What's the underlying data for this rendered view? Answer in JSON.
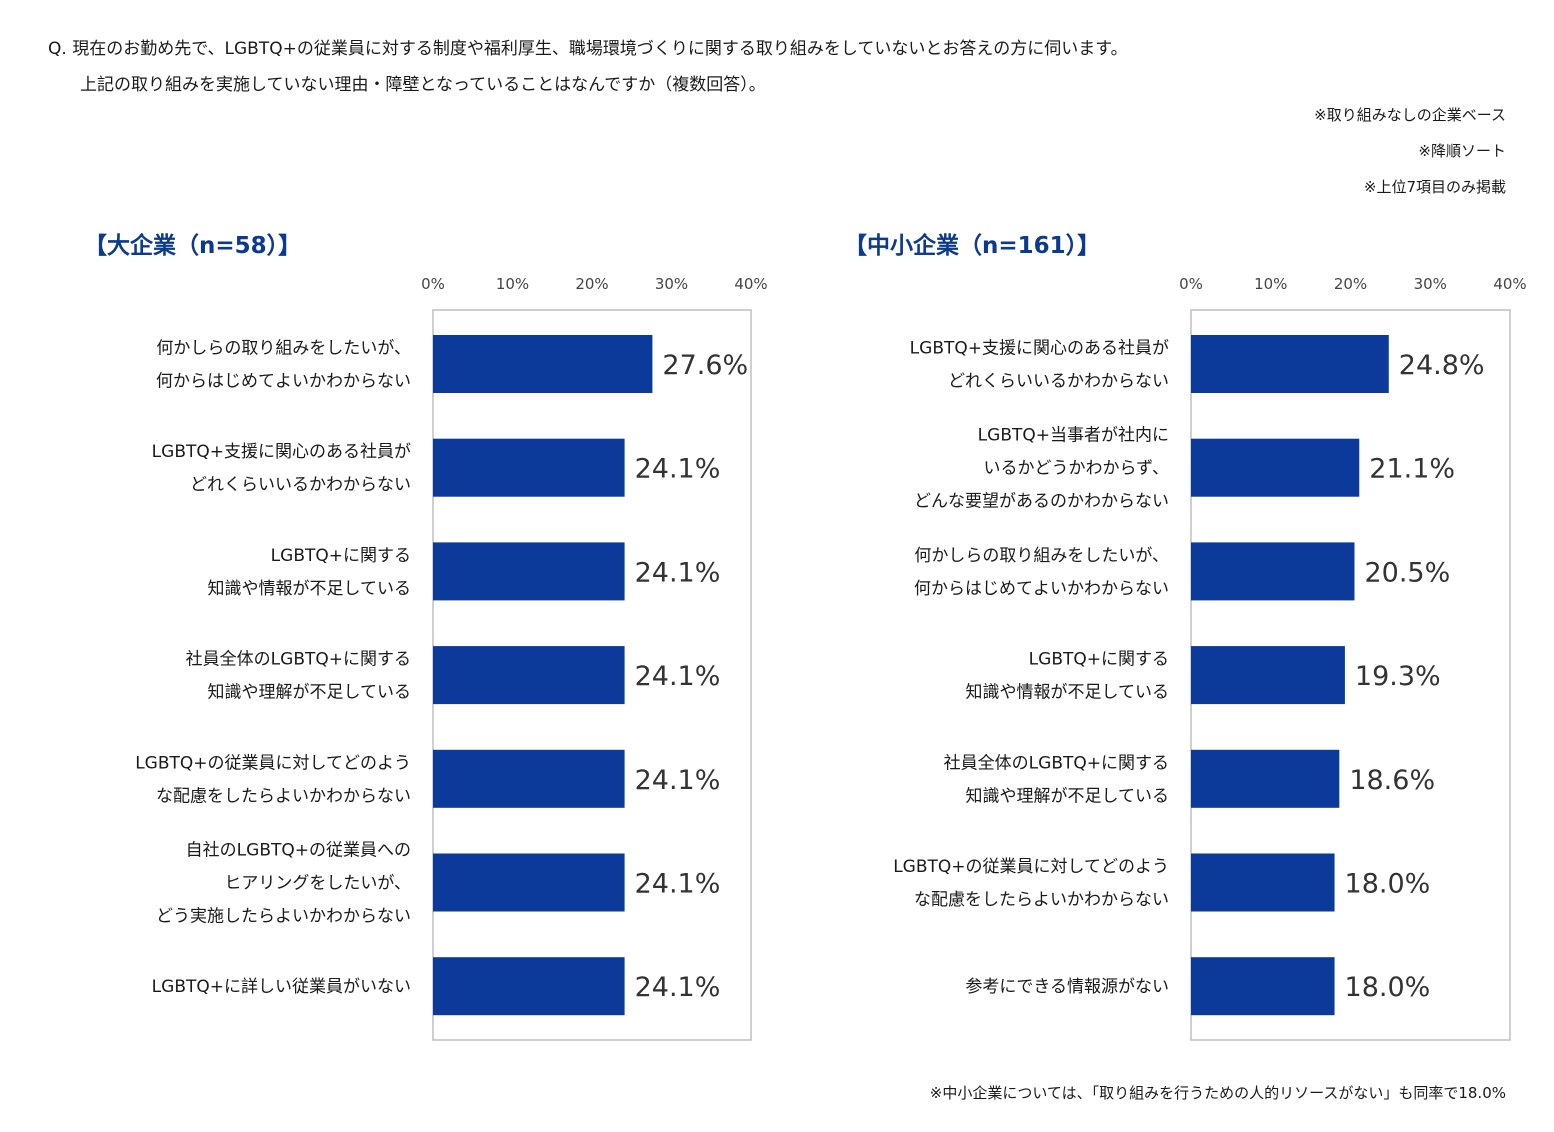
{
  "header": {
    "question_line1": "Q. 現在のお勤め先で、LGBTQ+の従業員に対する制度や福利厚生、職場環境づくりに関する取り組みをしていないとお答えの方に伺います。",
    "question_line2": "上記の取り組みを実施していない理由・障壁となっていることはなんですか（複数回答）。",
    "notes": [
      "※取り組みなしの企業ベース",
      "※降順ソート",
      "※上位7項目のみ掲載"
    ]
  },
  "footer": {
    "note": "※中小企業については、「取り組みを行うための人的リソースがない」も同率で18.0%"
  },
  "colors": {
    "bar": "#0b3a9b",
    "frame": "#bfbfbf",
    "title": "#0b3a8f"
  },
  "chart_data": [
    {
      "type": "bar",
      "orientation": "horizontal",
      "title": "【大企業（n=58）】",
      "xlim": [
        0,
        40
      ],
      "ticks": [
        "0%",
        "10%",
        "20%",
        "30%",
        "40%"
      ],
      "categories": [
        [
          "何かしらの取り組みをしたいが、",
          "何からはじめてよいかわからない"
        ],
        [
          "LGBTQ+支援に関心のある社員が",
          "どれくらいいるかわからない"
        ],
        [
          "LGBTQ+に関する",
          "知識や情報が不足している"
        ],
        [
          "社員全体のLGBTQ+に関する",
          "知識や理解が不足している"
        ],
        [
          "LGBTQ+の従業員に対してどのよう",
          "な配慮をしたらよいかわからない"
        ],
        [
          "自社のLGBTQ+の従業員への",
          "ヒアリングをしたいが、",
          "どう実施したらよいかわからない"
        ],
        [
          "LGBTQ+に詳しい従業員がいない"
        ]
      ],
      "values": [
        27.6,
        24.1,
        24.1,
        24.1,
        24.1,
        24.1,
        24.1
      ],
      "labels": [
        "27.6%",
        "24.1%",
        "24.1%",
        "24.1%",
        "24.1%",
        "24.1%",
        "24.1%"
      ]
    },
    {
      "type": "bar",
      "orientation": "horizontal",
      "title": "【中小企業（n=161）】",
      "xlim": [
        0,
        40
      ],
      "ticks": [
        "0%",
        "10%",
        "20%",
        "30%",
        "40%"
      ],
      "categories": [
        [
          "LGBTQ+支援に関心のある社員が",
          "どれくらいいるかわからない"
        ],
        [
          "LGBTQ+当事者が社内に",
          "いるかどうかわからず、",
          "どんな要望があるのかわからない"
        ],
        [
          "何かしらの取り組みをしたいが、",
          "何からはじめてよいかわからない"
        ],
        [
          "LGBTQ+に関する",
          "知識や情報が不足している"
        ],
        [
          "社員全体のLGBTQ+に関する",
          "知識や理解が不足している"
        ],
        [
          "LGBTQ+の従業員に対してどのよう",
          "な配慮をしたらよいかわからない"
        ],
        [
          "参考にできる情報源がない"
        ]
      ],
      "values": [
        24.8,
        21.1,
        20.5,
        19.3,
        18.6,
        18.0,
        18.0
      ],
      "labels": [
        "24.8%",
        "21.1%",
        "20.5%",
        "19.3%",
        "18.6%",
        "18.0%",
        "18.0%"
      ]
    }
  ]
}
